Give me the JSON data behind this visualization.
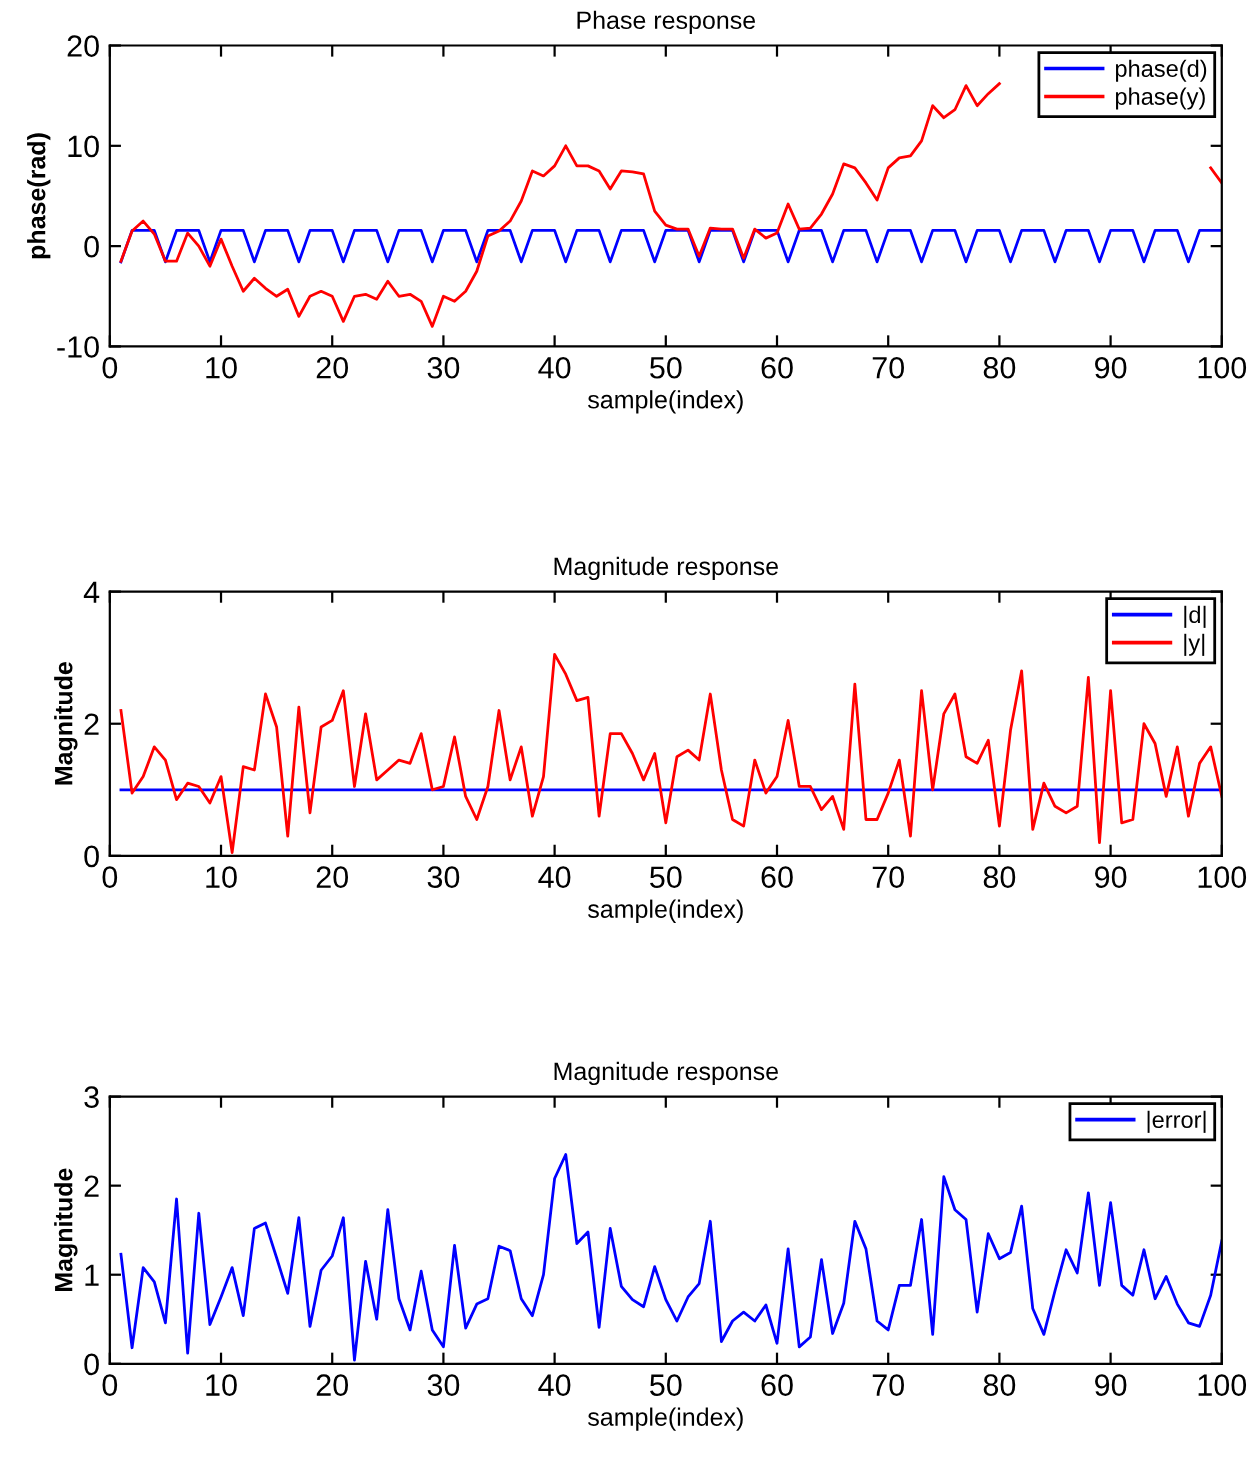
{
  "chart_data": [
    {
      "type": "line",
      "title": "Phase response",
      "xlabel": "sample(index)",
      "ylabel": "phase(rad)",
      "x": [
        1,
        2,
        3,
        4,
        5,
        6,
        7,
        8,
        9,
        10,
        11,
        12,
        13,
        14,
        15,
        16,
        17,
        18,
        19,
        20,
        21,
        22,
        23,
        24,
        25,
        26,
        27,
        28,
        29,
        30,
        31,
        32,
        33,
        34,
        35,
        36,
        37,
        38,
        39,
        40,
        41,
        42,
        43,
        44,
        45,
        46,
        47,
        48,
        49,
        50,
        51,
        52,
        53,
        54,
        55,
        56,
        57,
        58,
        59,
        60,
        61,
        62,
        63,
        64,
        65,
        66,
        67,
        68,
        69,
        70,
        71,
        72,
        73,
        74,
        75,
        76,
        77,
        78,
        79,
        80,
        81,
        82,
        83,
        84,
        85,
        86,
        87,
        88,
        89,
        90,
        91,
        92,
        93,
        94,
        95,
        96,
        97,
        98,
        99,
        100
      ],
      "xlim": [
        0,
        100
      ],
      "xticks": [
        0,
        10,
        20,
        30,
        40,
        50,
        60,
        70,
        80,
        90,
        100
      ],
      "ylim": [
        -10,
        20
      ],
      "yticks": [
        -10,
        0,
        10,
        20
      ],
      "grid": false,
      "legend": "top right",
      "line_style": "solid",
      "marker": "none",
      "series": [
        {
          "name": "phase(d)",
          "color": "#0000ff",
          "values": [
            -1.57,
            1.57,
            1.57,
            1.57,
            -1.57,
            1.57,
            1.57,
            1.57,
            -1.57,
            1.57,
            1.57,
            1.57,
            -1.57,
            1.57,
            1.57,
            1.57,
            -1.57,
            1.57,
            1.57,
            1.57,
            -1.57,
            1.57,
            1.57,
            1.57,
            -1.57,
            1.57,
            1.57,
            1.57,
            -1.57,
            1.57,
            1.57,
            1.57,
            -1.57,
            1.57,
            1.57,
            1.57,
            -1.57,
            1.57,
            1.57,
            1.57,
            -1.57,
            1.57,
            1.57,
            1.57,
            -1.57,
            1.57,
            1.57,
            1.57,
            -1.57,
            1.57,
            1.57,
            1.57,
            -1.57,
            1.57,
            1.57,
            1.57,
            -1.57,
            1.57,
            1.57,
            1.57,
            -1.57,
            1.57,
            1.57,
            1.57,
            -1.57,
            1.57,
            1.57,
            1.57,
            -1.57,
            1.57,
            1.57,
            1.57,
            -1.57,
            1.57,
            1.57,
            1.57,
            -1.57,
            1.57,
            1.57,
            1.57,
            -1.57,
            1.57,
            1.57,
            1.57,
            -1.57,
            1.57,
            1.57,
            1.57,
            -1.57,
            1.57,
            1.57,
            1.57,
            -1.57,
            1.57,
            1.57,
            1.57,
            -1.57,
            1.57,
            1.57,
            1.57
          ]
        },
        {
          "name": "phase(y)",
          "color": "#ff0000",
          "values": [
            -1.5,
            1.5,
            2.5,
            1.2,
            -1.5,
            -1.5,
            1.3,
            0,
            -2,
            0.7,
            -2,
            -4.5,
            -3.2,
            -4.2,
            -5,
            -4.3,
            -7,
            -5,
            -4.5,
            -5,
            -7.5,
            -5,
            -4.8,
            -5.3,
            -3.5,
            -5,
            -4.8,
            -5.5,
            -8,
            -5,
            -5.5,
            -4.5,
            -2.5,
            1,
            1.5,
            2.5,
            4.5,
            7.5,
            7,
            8,
            10,
            8,
            8,
            7.5,
            5.7,
            7.5,
            7.4,
            7.2,
            3.5,
            2.1,
            1.7,
            1.7,
            -1,
            1.8,
            1.7,
            1.7,
            -1.2,
            1.7,
            0.8,
            1.3,
            4.2,
            1.7,
            1.8,
            3.2,
            5.2,
            8.2,
            7.8,
            6.3,
            4.6,
            7.8,
            8.8,
            9,
            10.5,
            14,
            12.8,
            13.6,
            16,
            14,
            15.2,
            16.2,
            null,
            null,
            null,
            null,
            null,
            null,
            null,
            null,
            null,
            null,
            null,
            null,
            null,
            null,
            null,
            null,
            null,
            null,
            7.8,
            6.3
          ]
        }
      ]
    },
    {
      "type": "line",
      "title": "Magnitude response",
      "xlabel": "sample(index)",
      "ylabel": "Magnitude",
      "x": [
        1,
        2,
        3,
        4,
        5,
        6,
        7,
        8,
        9,
        10,
        11,
        12,
        13,
        14,
        15,
        16,
        17,
        18,
        19,
        20,
        21,
        22,
        23,
        24,
        25,
        26,
        27,
        28,
        29,
        30,
        31,
        32,
        33,
        34,
        35,
        36,
        37,
        38,
        39,
        40,
        41,
        42,
        43,
        44,
        45,
        46,
        47,
        48,
        49,
        50,
        51,
        52,
        53,
        54,
        55,
        56,
        57,
        58,
        59,
        60,
        61,
        62,
        63,
        64,
        65,
        66,
        67,
        68,
        69,
        70,
        71,
        72,
        73,
        74,
        75,
        76,
        77,
        78,
        79,
        80,
        81,
        82,
        83,
        84,
        85,
        86,
        87,
        88,
        89,
        90,
        91,
        92,
        93,
        94,
        95,
        96,
        97,
        98,
        99,
        100
      ],
      "xlim": [
        0,
        100
      ],
      "xticks": [
        0,
        10,
        20,
        30,
        40,
        50,
        60,
        70,
        80,
        90,
        100
      ],
      "ylim": [
        0,
        4
      ],
      "yticks": [
        0,
        2,
        4
      ],
      "grid": false,
      "legend": "top right",
      "line_style": "solid",
      "marker": "none",
      "series": [
        {
          "name": "|d|",
          "color": "#0000ff",
          "values": [
            1,
            1,
            1,
            1,
            1,
            1,
            1,
            1,
            1,
            1,
            1,
            1,
            1,
            1,
            1,
            1,
            1,
            1,
            1,
            1,
            1,
            1,
            1,
            1,
            1,
            1,
            1,
            1,
            1,
            1,
            1,
            1,
            1,
            1,
            1,
            1,
            1,
            1,
            1,
            1,
            1,
            1,
            1,
            1,
            1,
            1,
            1,
            1,
            1,
            1,
            1,
            1,
            1,
            1,
            1,
            1,
            1,
            1,
            1,
            1,
            1,
            1,
            1,
            1,
            1,
            1,
            1,
            1,
            1,
            1,
            1,
            1,
            1,
            1,
            1,
            1,
            1,
            1,
            1,
            1,
            1,
            1,
            1,
            1,
            1,
            1,
            1,
            1,
            1,
            1,
            1,
            1,
            1,
            1,
            1,
            1,
            1,
            1,
            1,
            1
          ]
        },
        {
          "name": "|y|",
          "color": "#ff0000",
          "values": [
            2.2,
            0.95,
            1.2,
            1.65,
            1.45,
            0.85,
            1.1,
            1.05,
            0.8,
            1.2,
            0.05,
            1.35,
            1.3,
            2.45,
            1.95,
            0.3,
            2.25,
            0.65,
            1.95,
            2.05,
            2.5,
            1.05,
            2.15,
            1.15,
            1.3,
            1.45,
            1.4,
            1.85,
            1.0,
            1.05,
            1.8,
            0.9,
            0.55,
            1.05,
            2.2,
            1.15,
            1.65,
            0.6,
            1.2,
            3.05,
            2.75,
            2.35,
            2.4,
            0.6,
            1.85,
            1.85,
            1.55,
            1.15,
            1.55,
            0.5,
            1.5,
            1.6,
            1.45,
            2.45,
            1.3,
            0.55,
            0.45,
            1.45,
            0.95,
            1.2,
            2.05,
            1.05,
            1.05,
            0.7,
            0.9,
            0.4,
            2.6,
            0.55,
            0.55,
            0.95,
            1.45,
            0.3,
            2.5,
            1.0,
            2.15,
            2.45,
            1.5,
            1.4,
            1.75,
            0.45,
            1.9,
            2.8,
            0.4,
            1.1,
            0.75,
            0.65,
            0.75,
            2.7,
            0.2,
            2.5,
            0.5,
            0.55,
            2.0,
            1.7,
            0.9,
            1.65,
            0.6,
            1.4,
            1.65,
            0.9
          ]
        }
      ]
    },
    {
      "type": "line",
      "title": "Magnitude response",
      "xlabel": "sample(index)",
      "ylabel": "Magnitude",
      "x": [
        1,
        2,
        3,
        4,
        5,
        6,
        7,
        8,
        9,
        10,
        11,
        12,
        13,
        14,
        15,
        16,
        17,
        18,
        19,
        20,
        21,
        22,
        23,
        24,
        25,
        26,
        27,
        28,
        29,
        30,
        31,
        32,
        33,
        34,
        35,
        36,
        37,
        38,
        39,
        40,
        41,
        42,
        43,
        44,
        45,
        46,
        47,
        48,
        49,
        50,
        51,
        52,
        53,
        54,
        55,
        56,
        57,
        58,
        59,
        60,
        61,
        62,
        63,
        64,
        65,
        66,
        67,
        68,
        69,
        70,
        71,
        72,
        73,
        74,
        75,
        76,
        77,
        78,
        79,
        80,
        81,
        82,
        83,
        84,
        85,
        86,
        87,
        88,
        89,
        90,
        91,
        92,
        93,
        94,
        95,
        96,
        97,
        98,
        99,
        100
      ],
      "xlim": [
        0,
        100
      ],
      "xticks": [
        0,
        10,
        20,
        30,
        40,
        50,
        60,
        70,
        80,
        90,
        100
      ],
      "ylim": [
        0,
        3
      ],
      "yticks": [
        0,
        1,
        2,
        3
      ],
      "grid": false,
      "legend": "top right",
      "line_style": "solid",
      "marker": "none",
      "series": [
        {
          "name": "|error|",
          "color": "#0000ff",
          "values": [
            1.23,
            0.18,
            1.08,
            0.92,
            0.46,
            1.85,
            0.12,
            1.69,
            0.44,
            0.75,
            1.08,
            0.54,
            1.52,
            1.58,
            1.19,
            0.79,
            1.64,
            0.42,
            1.05,
            1.21,
            1.64,
            0.04,
            1.15,
            0.5,
            1.73,
            0.73,
            0.38,
            1.04,
            0.38,
            0.19,
            1.33,
            0.4,
            0.67,
            0.73,
            1.32,
            1.27,
            0.73,
            0.54,
            1.0,
            2.08,
            2.35,
            1.35,
            1.48,
            0.41,
            1.52,
            0.87,
            0.72,
            0.64,
            1.09,
            0.72,
            0.48,
            0.75,
            0.9,
            1.6,
            0.25,
            0.48,
            0.58,
            0.48,
            0.66,
            0.23,
            1.29,
            0.19,
            0.3,
            1.17,
            0.34,
            0.68,
            1.6,
            1.29,
            0.48,
            0.38,
            0.88,
            0.88,
            1.62,
            0.33,
            2.1,
            1.73,
            1.62,
            0.58,
            1.46,
            1.18,
            1.25,
            1.77,
            0.62,
            0.33,
            0.82,
            1.28,
            1.02,
            1.92,
            0.88,
            1.81,
            0.88,
            0.77,
            1.28,
            0.73,
            0.98,
            0.67,
            0.46,
            0.42,
            0.77,
            1.38
          ]
        }
      ]
    }
  ]
}
